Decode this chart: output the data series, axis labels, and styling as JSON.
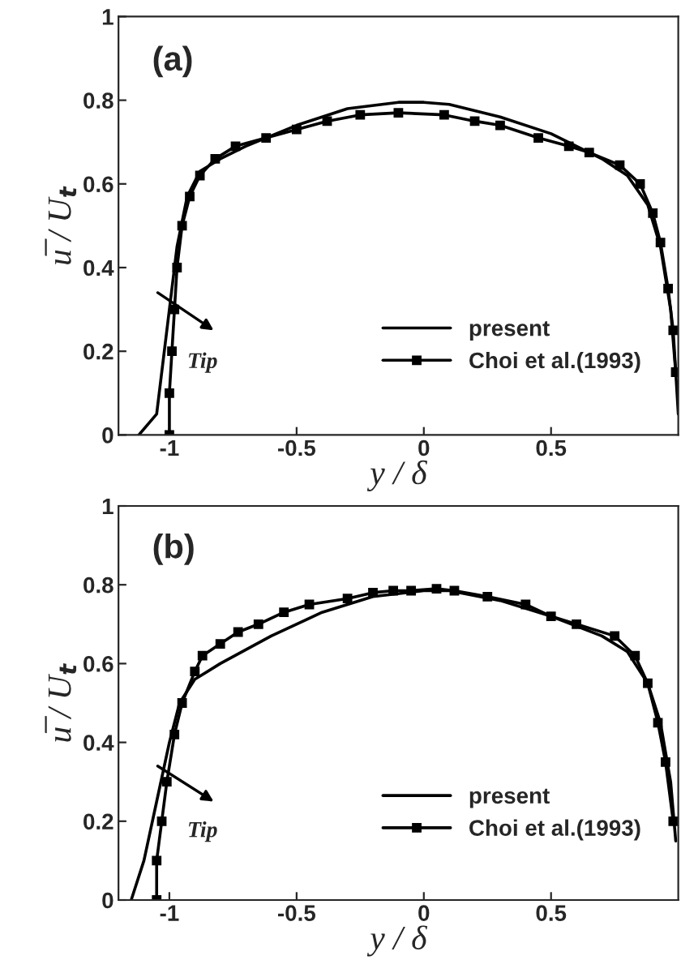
{
  "chart_data": [
    {
      "type": "line",
      "xlabel": "y / δ",
      "ylabel": "u̅ / U$_{t}$",
      "xlim": [
        -1.2,
        1.0
      ],
      "ylim": [
        0,
        1
      ],
      "xticks": [
        -1,
        -0.5,
        0,
        0.5
      ],
      "yticks": [
        0,
        0.2,
        0.4,
        0.6,
        0.8,
        1
      ],
      "legend": "bottom right",
      "grid": false,
      "annotations": [
        "(a)",
        "Tip"
      ],
      "series": [
        {
          "name": "present",
          "color": "#000000",
          "marker": "none",
          "x": [
            -1.12,
            -1.05,
            -1.0,
            -0.97,
            -0.93,
            -0.88,
            -0.8,
            -0.7,
            -0.5,
            -0.3,
            -0.1,
            0,
            0.1,
            0.3,
            0.5,
            0.6,
            0.7,
            0.8,
            0.88,
            0.93,
            0.97,
            0.99,
            1.0
          ],
          "values": [
            0,
            0.05,
            0.3,
            0.45,
            0.57,
            0.63,
            0.66,
            0.69,
            0.74,
            0.78,
            0.795,
            0.795,
            0.79,
            0.76,
            0.72,
            0.69,
            0.66,
            0.62,
            0.55,
            0.45,
            0.3,
            0.15,
            0.05
          ]
        },
        {
          "name": "Choi et al.(1993)",
          "color": "#000000",
          "marker": "square",
          "x": [
            -1.0,
            -1.0,
            -0.99,
            -0.98,
            -0.97,
            -0.95,
            -0.92,
            -0.88,
            -0.82,
            -0.74,
            -0.62,
            -0.5,
            -0.38,
            -0.25,
            -0.1,
            0.08,
            0.2,
            0.3,
            0.45,
            0.57,
            0.65,
            0.77,
            0.85,
            0.9,
            0.93,
            0.96,
            0.98,
            0.99
          ],
          "values": [
            0.0,
            0.1,
            0.2,
            0.3,
            0.4,
            0.5,
            0.57,
            0.62,
            0.66,
            0.69,
            0.71,
            0.73,
            0.75,
            0.765,
            0.77,
            0.765,
            0.75,
            0.74,
            0.71,
            0.69,
            0.675,
            0.645,
            0.6,
            0.53,
            0.46,
            0.35,
            0.25,
            0.15
          ]
        }
      ]
    },
    {
      "type": "line",
      "xlabel": "y / δ",
      "ylabel": "u̅ / U$_{t}$",
      "xlim": [
        -1.2,
        1.0
      ],
      "ylim": [
        0,
        1
      ],
      "xticks": [
        -1,
        -0.5,
        0,
        0.5
      ],
      "yticks": [
        0,
        0.2,
        0.4,
        0.6,
        0.8,
        1
      ],
      "legend": "bottom right",
      "grid": false,
      "annotations": [
        "(b)",
        "Tip"
      ],
      "series": [
        {
          "name": "present",
          "color": "#000000",
          "marker": "none",
          "x": [
            -1.15,
            -1.1,
            -1.05,
            -1.0,
            -0.96,
            -0.9,
            -0.8,
            -0.6,
            -0.4,
            -0.2,
            0,
            0.1,
            0.3,
            0.5,
            0.7,
            0.8,
            0.88,
            0.93,
            0.97,
            0.99
          ],
          "values": [
            0,
            0.1,
            0.25,
            0.4,
            0.5,
            0.56,
            0.6,
            0.67,
            0.73,
            0.77,
            0.785,
            0.785,
            0.76,
            0.72,
            0.67,
            0.63,
            0.55,
            0.45,
            0.3,
            0.15
          ]
        },
        {
          "name": "Choi et al.(1993)",
          "color": "#000000",
          "marker": "square",
          "x": [
            -1.05,
            -1.05,
            -1.03,
            -1.01,
            -0.98,
            -0.95,
            -0.9,
            -0.87,
            -0.8,
            -0.73,
            -0.65,
            -0.55,
            -0.45,
            -0.3,
            -0.2,
            -0.12,
            -0.05,
            0.05,
            0.12,
            0.25,
            0.4,
            0.5,
            0.6,
            0.75,
            0.83,
            0.88,
            0.92,
            0.95,
            0.98
          ],
          "values": [
            0.0,
            0.1,
            0.2,
            0.3,
            0.42,
            0.5,
            0.58,
            0.62,
            0.65,
            0.68,
            0.7,
            0.73,
            0.75,
            0.765,
            0.78,
            0.785,
            0.785,
            0.79,
            0.785,
            0.77,
            0.75,
            0.72,
            0.7,
            0.67,
            0.62,
            0.55,
            0.45,
            0.35,
            0.2
          ]
        }
      ]
    }
  ]
}
